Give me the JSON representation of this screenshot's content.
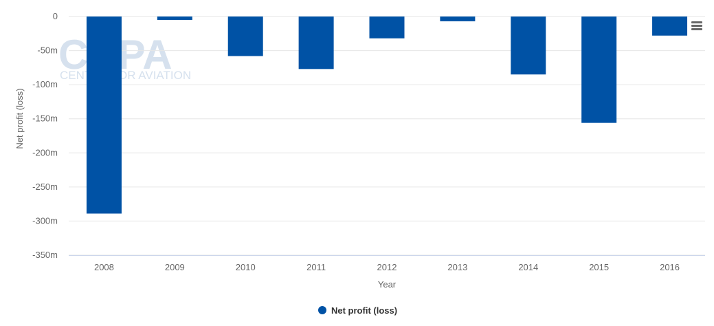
{
  "watermark": {
    "logo": "CAPA",
    "tagline": "CENTRE FOR AVIATION"
  },
  "menu": {
    "icon": "hamburger-menu-icon"
  },
  "chart_data": {
    "type": "bar",
    "categories": [
      "2008",
      "2009",
      "2010",
      "2011",
      "2012",
      "2013",
      "2014",
      "2015",
      "2016"
    ],
    "series": [
      {
        "name": "Net profit (loss)",
        "color": "#0052a5",
        "values": [
          -289,
          -5,
          -58,
          -77,
          -32,
          -7,
          -85,
          -156,
          -28
        ]
      }
    ],
    "xlabel": "Year",
    "ylabel": "Net profit (loss)",
    "ylim": [
      -350,
      0
    ],
    "yticks": [
      0,
      -50,
      -100,
      -150,
      -200,
      -250,
      -300,
      -350
    ],
    "ytick_labels": [
      "0",
      "-50m",
      "-100m",
      "-150m",
      "-200m",
      "-250m",
      "-300m",
      "-350m"
    ],
    "grid": true,
    "legend_position": "bottom-center"
  }
}
